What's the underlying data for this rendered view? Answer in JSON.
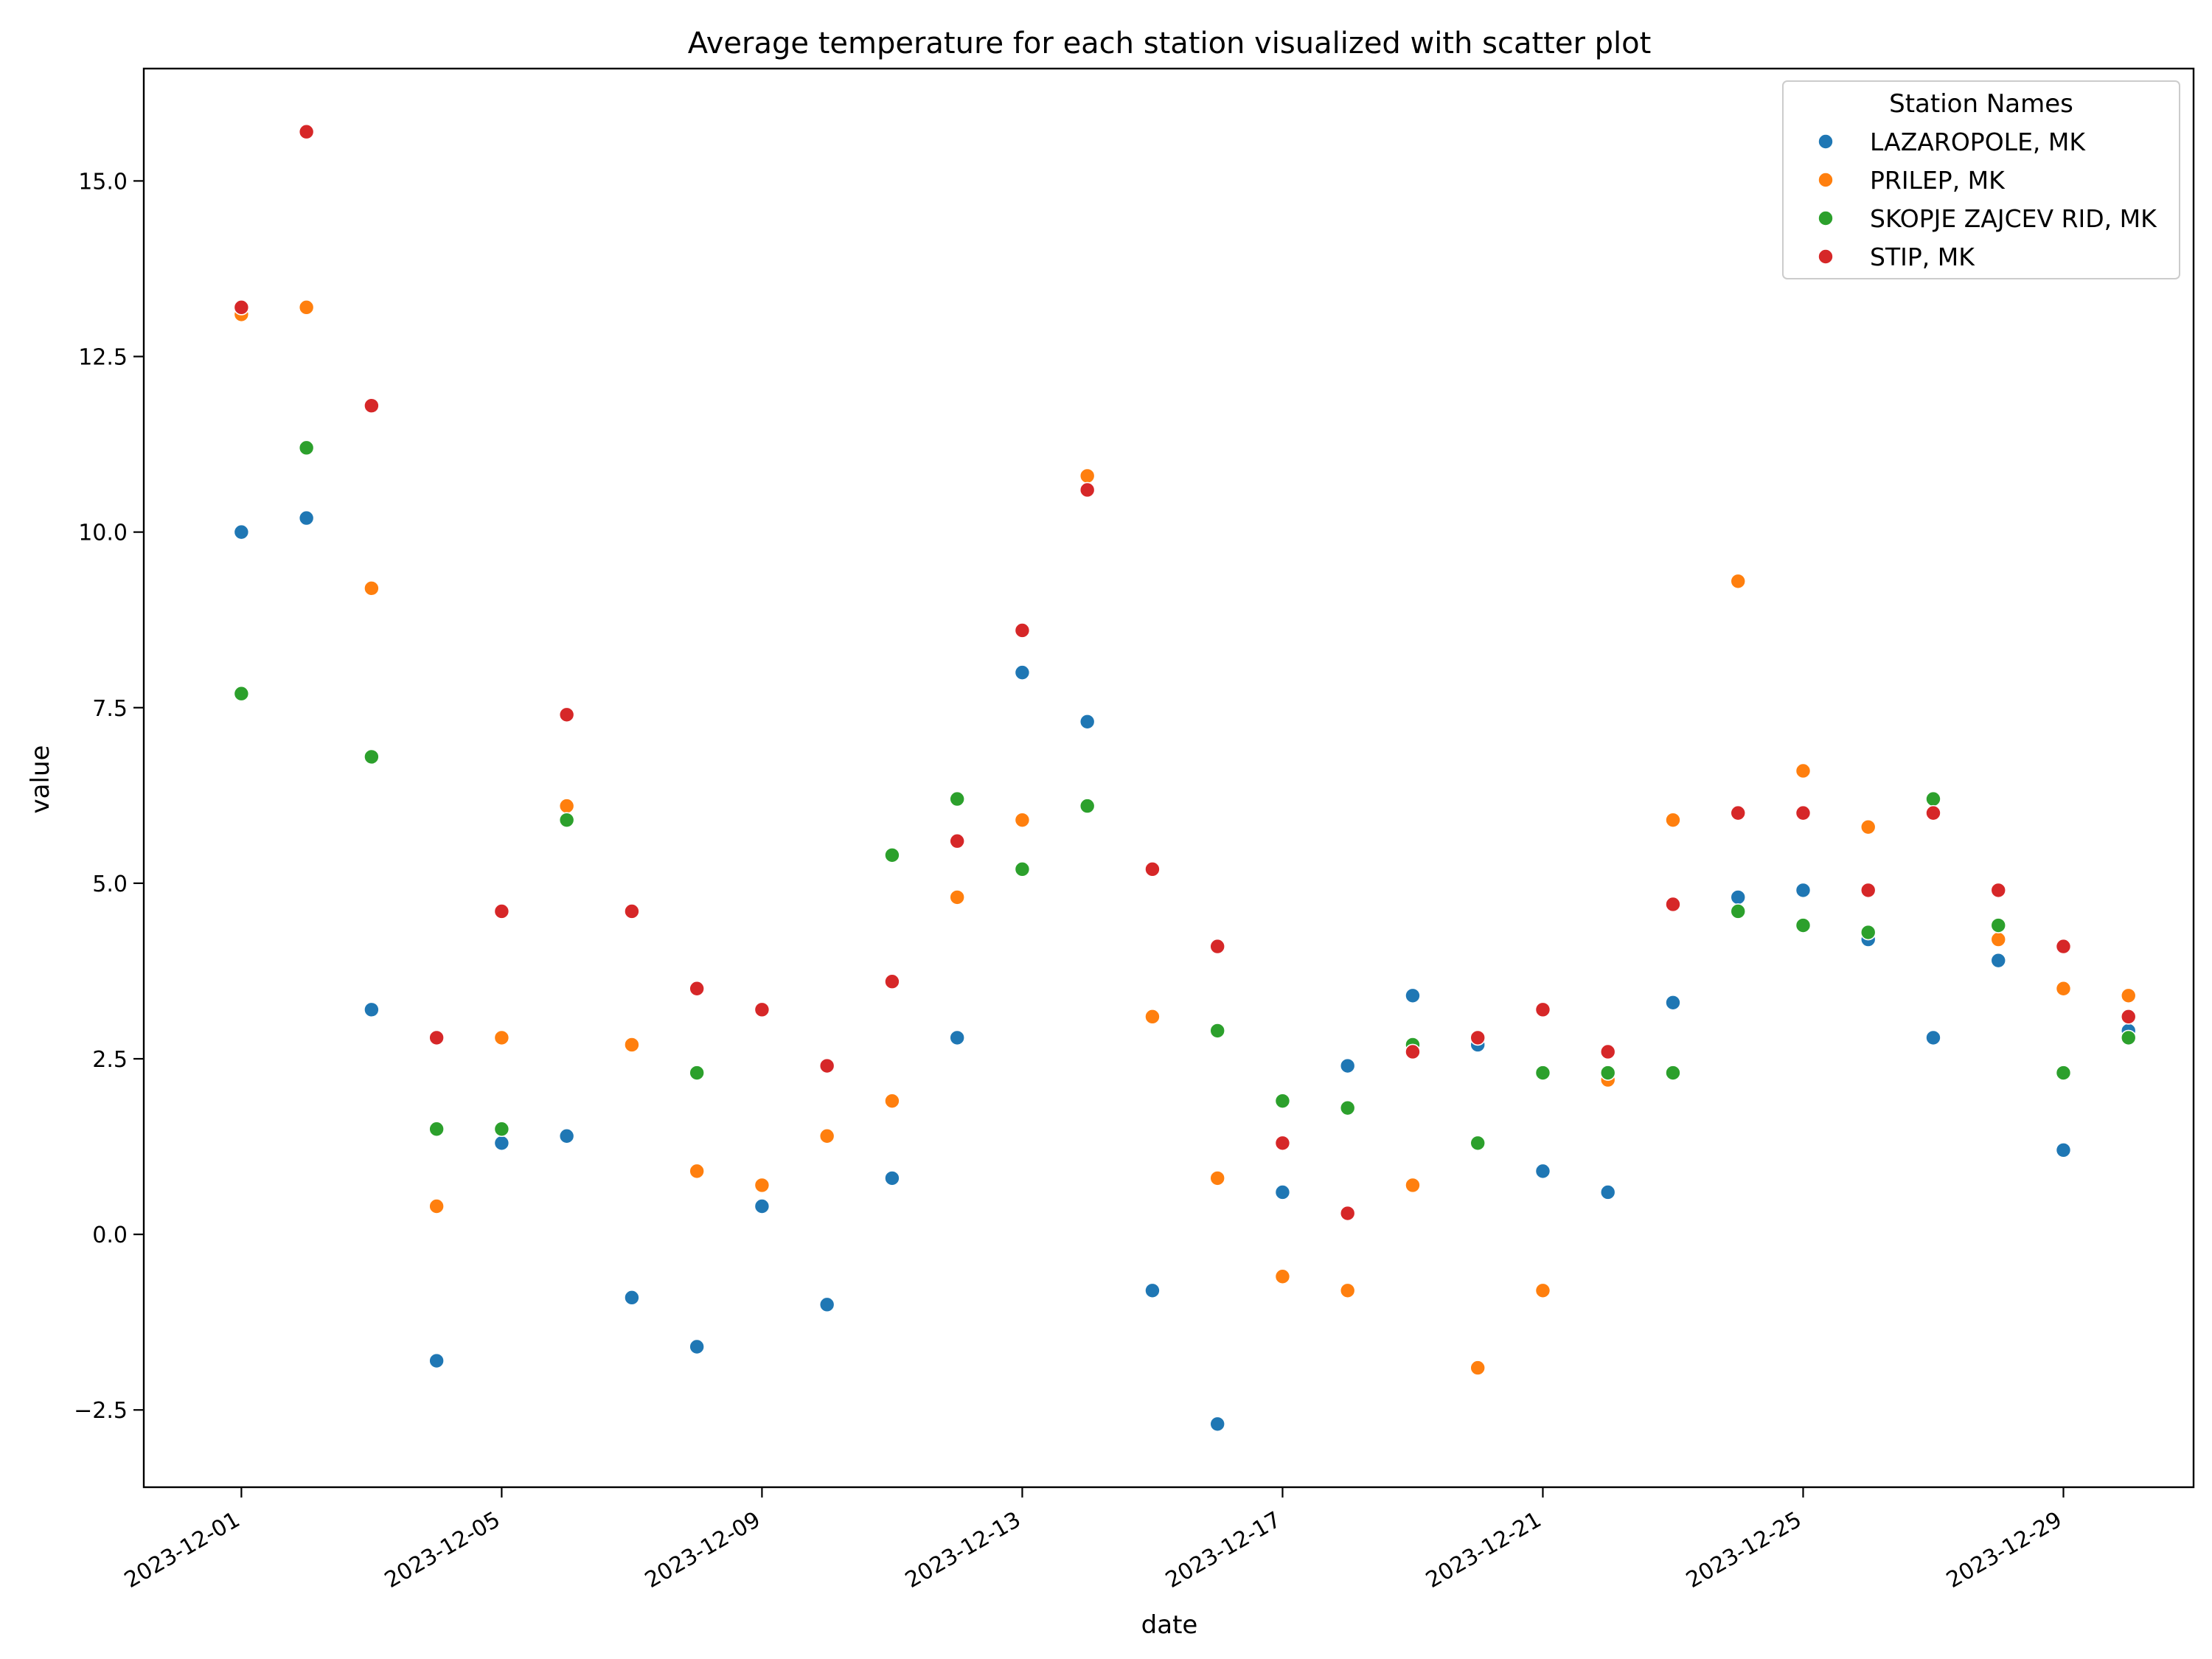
{
  "chart_data": {
    "type": "scatter",
    "title": "Average temperature for each station visualized with scatter plot",
    "xlabel": "date",
    "ylabel": "value",
    "xlim": [
      "2023-11-29T12:00",
      "2023-12-31T00:00"
    ],
    "ylim": [
      -3.6,
      16.6
    ],
    "x_ticks": [
      "2023-12-01",
      "2023-12-05",
      "2023-12-09",
      "2023-12-13",
      "2023-12-17",
      "2023-12-21",
      "2023-12-25",
      "2023-12-29"
    ],
    "y_ticks": [
      -2.5,
      0.0,
      2.5,
      5.0,
      7.5,
      10.0,
      12.5,
      15.0
    ],
    "y_tick_labels": [
      "−2.5",
      "0.0",
      "2.5",
      "5.0",
      "7.5",
      "10.0",
      "12.5",
      "15.0"
    ],
    "grid": false,
    "legend": {
      "title": "Station Names",
      "placement": "top-right"
    },
    "dates": [
      "2023-12-01",
      "2023-12-02",
      "2023-12-03",
      "2023-12-04",
      "2023-12-05",
      "2023-12-06",
      "2023-12-07",
      "2023-12-08",
      "2023-12-09",
      "2023-12-10",
      "2023-12-11",
      "2023-12-12",
      "2023-12-13",
      "2023-12-14",
      "2023-12-15",
      "2023-12-16",
      "2023-12-17",
      "2023-12-18",
      "2023-12-19",
      "2023-12-20",
      "2023-12-21",
      "2023-12-22",
      "2023-12-23",
      "2023-12-24",
      "2023-12-25",
      "2023-12-26",
      "2023-12-27",
      "2023-12-28",
      "2023-12-29",
      "2023-12-30"
    ],
    "series": [
      {
        "name": "LAZAROPOLE, MK",
        "color": "#1f77b4",
        "values": [
          10.0,
          10.2,
          3.2,
          -1.8,
          1.3,
          1.4,
          -0.9,
          -1.6,
          0.4,
          -1.0,
          0.8,
          2.8,
          8.0,
          7.3,
          -0.8,
          -2.7,
          0.6,
          2.4,
          3.4,
          2.7,
          0.9,
          0.6,
          3.3,
          4.8,
          4.9,
          4.2,
          2.8,
          3.9,
          1.2,
          2.9
        ]
      },
      {
        "name": "PRILEP, MK",
        "color": "#ff7f0e",
        "values": [
          13.1,
          13.2,
          9.2,
          0.4,
          2.8,
          6.1,
          2.7,
          0.9,
          0.7,
          1.4,
          1.9,
          4.8,
          5.9,
          10.8,
          3.1,
          0.8,
          -0.6,
          -0.8,
          0.7,
          -1.9,
          -0.8,
          2.2,
          5.9,
          9.3,
          6.6,
          5.8,
          null,
          4.2,
          3.5,
          3.4
        ]
      },
      {
        "name": "SKOPJE ZAJCEV RID, MK",
        "color": "#2ca02c",
        "values": [
          7.7,
          11.2,
          6.8,
          1.5,
          1.5,
          5.9,
          null,
          2.3,
          null,
          null,
          5.4,
          6.2,
          5.2,
          6.1,
          null,
          2.9,
          1.9,
          1.8,
          2.7,
          1.3,
          2.3,
          2.3,
          2.3,
          4.6,
          4.4,
          4.3,
          6.2,
          4.4,
          2.3,
          2.8
        ]
      },
      {
        "name": "STIP, MK",
        "color": "#d62728",
        "values": [
          13.2,
          15.7,
          11.8,
          2.8,
          4.6,
          7.4,
          4.6,
          3.5,
          3.2,
          2.4,
          3.6,
          5.6,
          8.6,
          10.6,
          5.2,
          4.1,
          1.3,
          0.3,
          2.6,
          2.8,
          3.2,
          2.6,
          4.7,
          6.0,
          6.0,
          4.9,
          6.0,
          4.9,
          4.1,
          3.1
        ]
      }
    ]
  }
}
